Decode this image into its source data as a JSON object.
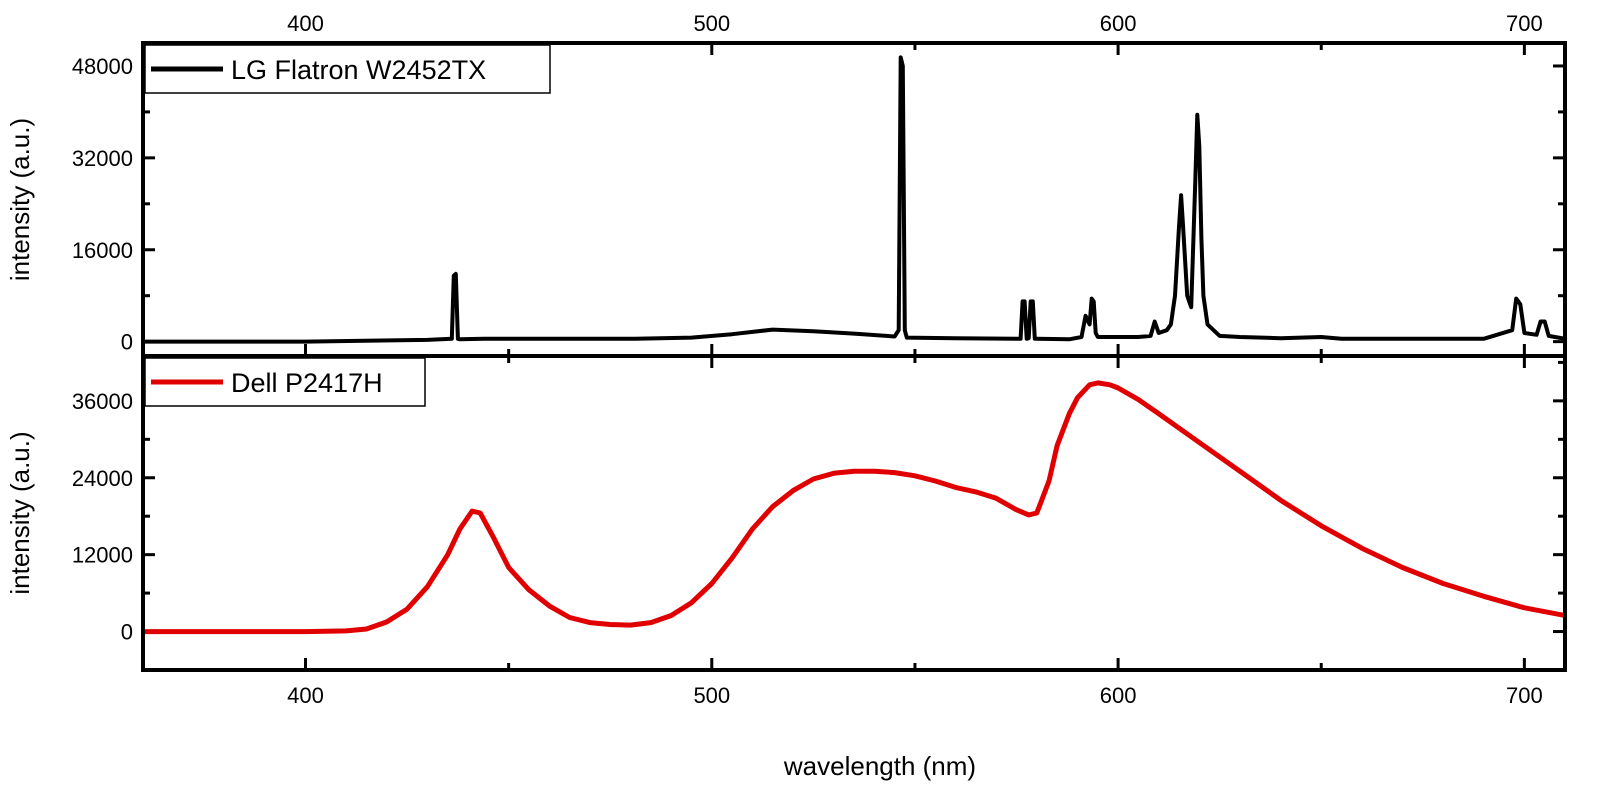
{
  "chart_data": [
    {
      "type": "line",
      "xlabel": "wavelength (nm)",
      "ylabel": "intensity (a.u.)",
      "xlim": [
        360,
        710
      ],
      "ylim": [
        -2500,
        52000
      ],
      "x_ticks": [
        400,
        500,
        600,
        700
      ],
      "y_ticks": [
        0,
        16000,
        32000,
        48000
      ],
      "x_tick_labels_position": "top",
      "legend_placement": "top-left",
      "grid": false,
      "series": [
        {
          "name": "LG Flatron W2452TX",
          "color": "#000000",
          "x": [
            360,
            400,
            430,
            436,
            436.5,
            437,
            437.5,
            438,
            444,
            480,
            495,
            505,
            515,
            525,
            535,
            545,
            546,
            546.5,
            547,
            547.5,
            548,
            560,
            576,
            576.5,
            577,
            577.5,
            578,
            578.5,
            579,
            579.5,
            580,
            588,
            591,
            592,
            593,
            593.5,
            594,
            594.5,
            595,
            597,
            605,
            608,
            609,
            610,
            612,
            613,
            614,
            615,
            615.5,
            616,
            617,
            618,
            619,
            619.5,
            620,
            620.5,
            621,
            622,
            625,
            630,
            640,
            650,
            655,
            690,
            697,
            698,
            699,
            700,
            703,
            704,
            705,
            706,
            710
          ],
          "values": [
            0,
            0,
            300,
            500,
            11500,
            11800,
            500,
            400,
            500,
            500,
            700,
            1300,
            2100,
            1800,
            1400,
            900,
            2000,
            49500,
            48000,
            2000,
            700,
            600,
            500,
            7000,
            7000,
            500,
            600,
            7000,
            7000,
            500,
            500,
            400,
            800,
            4500,
            3000,
            7500,
            7000,
            1500,
            800,
            800,
            800,
            1000,
            3500,
            1500,
            2000,
            3000,
            8000,
            20000,
            25500,
            20000,
            8000,
            6000,
            28000,
            39500,
            34000,
            18000,
            8000,
            3000,
            1000,
            800,
            600,
            800,
            500,
            500,
            2000,
            7500,
            6500,
            1500,
            1200,
            3500,
            3500,
            1000,
            500
          ]
        }
      ]
    },
    {
      "type": "line",
      "xlabel": "wavelength (nm)",
      "ylabel": "intensity (a.u.)",
      "xlim": [
        360,
        710
      ],
      "ylim": [
        -6000,
        43000
      ],
      "x_ticks": [
        400,
        500,
        600,
        700
      ],
      "y_ticks": [
        0,
        12000,
        24000,
        36000
      ],
      "legend_placement": "top-left",
      "grid": false,
      "series": [
        {
          "name": "Dell P2417H",
          "color": "#e00000",
          "x": [
            360,
            400,
            410,
            415,
            420,
            425,
            430,
            435,
            438,
            441,
            443,
            446,
            450,
            455,
            460,
            465,
            470,
            475,
            480,
            485,
            490,
            495,
            500,
            505,
            510,
            515,
            520,
            525,
            530,
            535,
            540,
            545,
            550,
            555,
            560,
            565,
            570,
            575,
            578,
            580,
            583,
            585,
            588,
            590,
            593,
            595,
            598,
            600,
            605,
            610,
            620,
            630,
            640,
            650,
            660,
            670,
            680,
            690,
            700,
            710
          ],
          "values": [
            0,
            0,
            100,
            400,
            1500,
            3500,
            7000,
            12000,
            16000,
            18800,
            18500,
            15000,
            10000,
            6500,
            4000,
            2200,
            1400,
            1100,
            1000,
            1400,
            2500,
            4500,
            7500,
            11500,
            16000,
            19500,
            22000,
            23800,
            24700,
            25000,
            25000,
            24800,
            24300,
            23500,
            22500,
            21800,
            20800,
            19000,
            18200,
            18500,
            23500,
            29000,
            34000,
            36500,
            38500,
            38800,
            38500,
            38000,
            36200,
            34000,
            29500,
            25000,
            20500,
            16500,
            13000,
            10000,
            7500,
            5500,
            3700,
            2500
          ]
        }
      ]
    }
  ]
}
